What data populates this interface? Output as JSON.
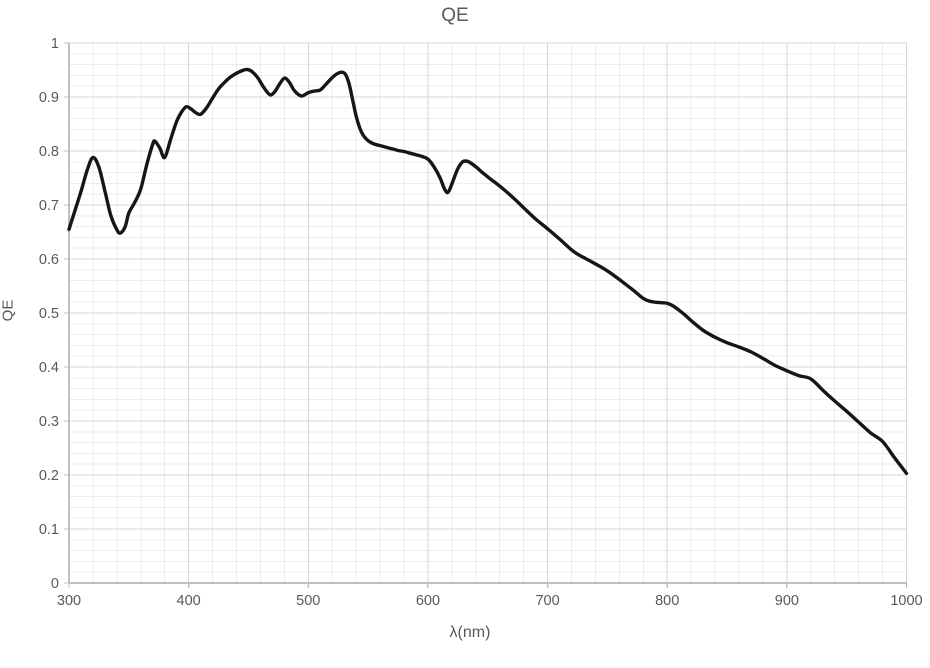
{
  "chart_data": {
    "type": "line",
    "title": "QE",
    "xlabel": "λ(nm)",
    "ylabel": "QE",
    "xlim": [
      300,
      1000
    ],
    "ylim": [
      0,
      1
    ],
    "grid": true,
    "legend": "none",
    "x_major_ticks": [
      300,
      400,
      500,
      600,
      700,
      800,
      900,
      1000
    ],
    "x_tick_labels": [
      "300",
      "400",
      "500",
      "600",
      "700",
      "800",
      "900",
      "1000"
    ],
    "x_minor_step": 20,
    "y_major_ticks": [
      0,
      0.1,
      0.2,
      0.3,
      0.4,
      0.5,
      0.6,
      0.7,
      0.8,
      0.9,
      1
    ],
    "y_tick_labels": [
      "0",
      "0.1",
      "0.2",
      "0.3",
      "0.4",
      "0.5",
      "0.6",
      "0.7",
      "0.8",
      "0.9",
      "1"
    ],
    "y_minor_step": 0.02,
    "colors": {
      "curve": "#161616",
      "major_grid": "#d6d6d6",
      "minor_grid": "#ececec",
      "axis": "#bfbfbf",
      "labels": "#595959"
    },
    "series": [
      {
        "name": "QE",
        "points": [
          [
            300,
            0.655
          ],
          [
            305,
            0.69
          ],
          [
            310,
            0.725
          ],
          [
            315,
            0.763
          ],
          [
            320,
            0.788
          ],
          [
            325,
            0.77
          ],
          [
            330,
            0.726
          ],
          [
            335,
            0.68
          ],
          [
            340,
            0.654
          ],
          [
            343,
            0.648
          ],
          [
            347,
            0.66
          ],
          [
            350,
            0.685
          ],
          [
            355,
            0.705
          ],
          [
            360,
            0.73
          ],
          [
            365,
            0.775
          ],
          [
            370,
            0.813
          ],
          [
            372,
            0.818
          ],
          [
            376,
            0.805
          ],
          [
            380,
            0.788
          ],
          [
            385,
            0.822
          ],
          [
            390,
            0.855
          ],
          [
            394,
            0.872
          ],
          [
            398,
            0.882
          ],
          [
            402,
            0.878
          ],
          [
            406,
            0.871
          ],
          [
            410,
            0.868
          ],
          [
            415,
            0.88
          ],
          [
            420,
            0.898
          ],
          [
            425,
            0.915
          ],
          [
            430,
            0.927
          ],
          [
            435,
            0.937
          ],
          [
            440,
            0.944
          ],
          [
            445,
            0.949
          ],
          [
            449,
            0.951
          ],
          [
            453,
            0.947
          ],
          [
            458,
            0.935
          ],
          [
            463,
            0.917
          ],
          [
            468,
            0.904
          ],
          [
            472,
            0.91
          ],
          [
            476,
            0.924
          ],
          [
            480,
            0.935
          ],
          [
            484,
            0.928
          ],
          [
            488,
            0.913
          ],
          [
            492,
            0.904
          ],
          [
            495,
            0.902
          ],
          [
            500,
            0.908
          ],
          [
            505,
            0.911
          ],
          [
            510,
            0.913
          ],
          [
            515,
            0.924
          ],
          [
            520,
            0.936
          ],
          [
            524,
            0.943
          ],
          [
            528,
            0.946
          ],
          [
            531,
            0.942
          ],
          [
            534,
            0.925
          ],
          [
            537,
            0.895
          ],
          [
            540,
            0.865
          ],
          [
            543,
            0.843
          ],
          [
            546,
            0.829
          ],
          [
            550,
            0.819
          ],
          [
            555,
            0.813
          ],
          [
            560,
            0.81
          ],
          [
            565,
            0.807
          ],
          [
            570,
            0.804
          ],
          [
            575,
            0.801
          ],
          [
            580,
            0.799
          ],
          [
            585,
            0.796
          ],
          [
            590,
            0.793
          ],
          [
            595,
            0.79
          ],
          [
            600,
            0.785
          ],
          [
            605,
            0.771
          ],
          [
            610,
            0.751
          ],
          [
            614,
            0.729
          ],
          [
            617,
            0.724
          ],
          [
            621,
            0.745
          ],
          [
            625,
            0.767
          ],
          [
            629,
            0.78
          ],
          [
            633,
            0.781
          ],
          [
            637,
            0.776
          ],
          [
            641,
            0.769
          ],
          [
            645,
            0.761
          ],
          [
            650,
            0.752
          ],
          [
            660,
            0.735
          ],
          [
            670,
            0.716
          ],
          [
            680,
            0.695
          ],
          [
            690,
            0.674
          ],
          [
            700,
            0.656
          ],
          [
            710,
            0.637
          ],
          [
            720,
            0.617
          ],
          [
            725,
            0.609
          ],
          [
            730,
            0.603
          ],
          [
            740,
            0.591
          ],
          [
            750,
            0.578
          ],
          [
            760,
            0.562
          ],
          [
            770,
            0.545
          ],
          [
            775,
            0.536
          ],
          [
            780,
            0.527
          ],
          [
            785,
            0.522
          ],
          [
            790,
            0.52
          ],
          [
            795,
            0.519
          ],
          [
            800,
            0.518
          ],
          [
            805,
            0.513
          ],
          [
            810,
            0.505
          ],
          [
            815,
            0.496
          ],
          [
            820,
            0.486
          ],
          [
            830,
            0.468
          ],
          [
            840,
            0.455
          ],
          [
            850,
            0.445
          ],
          [
            860,
            0.437
          ],
          [
            870,
            0.428
          ],
          [
            880,
            0.416
          ],
          [
            890,
            0.403
          ],
          [
            900,
            0.393
          ],
          [
            910,
            0.384
          ],
          [
            920,
            0.378
          ],
          [
            930,
            0.357
          ],
          [
            940,
            0.337
          ],
          [
            950,
            0.318
          ],
          [
            960,
            0.298
          ],
          [
            970,
            0.278
          ],
          [
            980,
            0.262
          ],
          [
            990,
            0.232
          ],
          [
            1000,
            0.203
          ]
        ]
      }
    ]
  }
}
